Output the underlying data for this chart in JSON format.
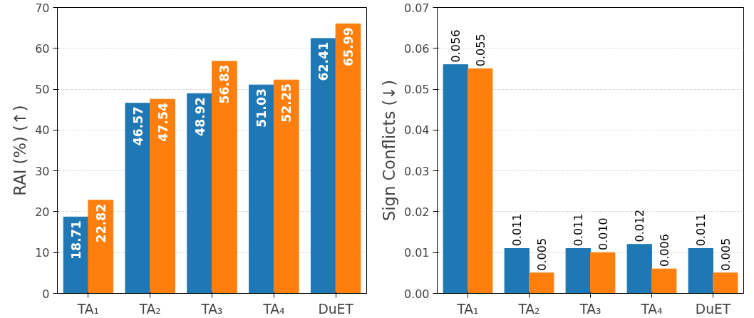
{
  "chart_data": [
    {
      "type": "bar",
      "ylabel": "RAI (%) (↑)",
      "categories": [
        "TA₁",
        "TA₂",
        "TA₃",
        "TA₄",
        "DuET"
      ],
      "ylim": [
        0,
        70
      ],
      "yticks": [
        0,
        10,
        20,
        30,
        40,
        50,
        60,
        70
      ],
      "grid": "y",
      "series": [
        {
          "color": "#1f77b4",
          "values": [
            18.71,
            46.57,
            48.92,
            51.03,
            62.41
          ],
          "value_labels": [
            "18.71",
            "46.57",
            "48.92",
            "51.03",
            "62.41"
          ]
        },
        {
          "color": "#ff7f0e",
          "values": [
            22.82,
            47.54,
            56.83,
            52.25,
            65.99
          ],
          "value_labels": [
            "22.82",
            "47.54",
            "56.83",
            "52.25",
            "65.99"
          ]
        }
      ]
    },
    {
      "type": "bar",
      "ylabel": "Sign Conflicts (↓)",
      "categories": [
        "TA₁",
        "TA₂",
        "TA₃",
        "TA₄",
        "DuET"
      ],
      "ylim": [
        0,
        0.07
      ],
      "yticks": [
        {
          "value": 0,
          "label": "0.00"
        },
        0.01,
        0.02,
        0.03,
        0.04,
        0.05,
        0.06,
        0.07
      ],
      "grid": "y",
      "series": [
        {
          "color": "#1f77b4",
          "values": [
            0.056,
            0.011,
            0.011,
            0.012,
            0.011
          ],
          "value_labels": [
            "0.056",
            "0.011",
            "0.011",
            "0.012",
            "0.011"
          ]
        },
        {
          "color": "#ff7f0e",
          "values": [
            0.055,
            0.005,
            0.01,
            0.006,
            0.005
          ],
          "value_labels": [
            "0.055",
            "0.005",
            "0.010",
            "0.006",
            "0.005"
          ]
        }
      ]
    }
  ]
}
